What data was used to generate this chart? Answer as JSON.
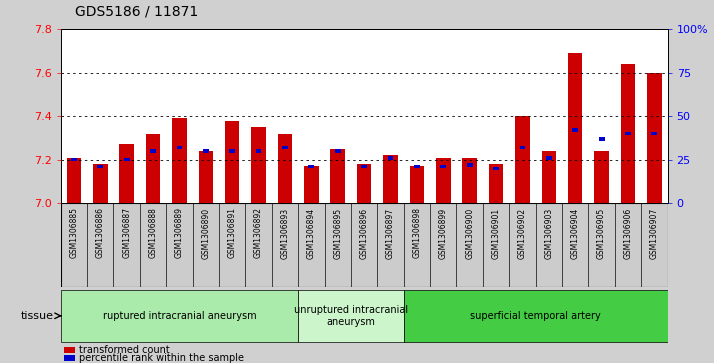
{
  "title": "GDS5186 / 11871",
  "samples": [
    "GSM1306885",
    "GSM1306886",
    "GSM1306887",
    "GSM1306888",
    "GSM1306889",
    "GSM1306890",
    "GSM1306891",
    "GSM1306892",
    "GSM1306893",
    "GSM1306894",
    "GSM1306895",
    "GSM1306896",
    "GSM1306897",
    "GSM1306898",
    "GSM1306899",
    "GSM1306900",
    "GSM1306901",
    "GSM1306902",
    "GSM1306903",
    "GSM1306904",
    "GSM1306905",
    "GSM1306906",
    "GSM1306907"
  ],
  "transformed_count": [
    7.21,
    7.18,
    7.27,
    7.32,
    7.39,
    7.24,
    7.38,
    7.35,
    7.32,
    7.17,
    7.25,
    7.18,
    7.22,
    7.17,
    7.21,
    7.21,
    7.18,
    7.4,
    7.24,
    7.69,
    7.24,
    7.64,
    7.6
  ],
  "percentile_rank": [
    25,
    21,
    25,
    30,
    32,
    30,
    30,
    30,
    32,
    21,
    30,
    21,
    26,
    21,
    21,
    22,
    20,
    32,
    26,
    42,
    37,
    40,
    40
  ],
  "ylim_left": [
    7.0,
    7.8
  ],
  "ylim_right": [
    0,
    100
  ],
  "yticks_left": [
    7.0,
    7.2,
    7.4,
    7.6,
    7.8
  ],
  "yticks_right": [
    0,
    25,
    50,
    75,
    100
  ],
  "ytick_labels_right": [
    "0",
    "25",
    "50",
    "75",
    "100%"
  ],
  "bar_color": "#cc0000",
  "percentile_color": "#0000cc",
  "bar_width": 0.55,
  "groups": [
    {
      "label": "ruptured intracranial aneurysm",
      "start": 0,
      "end": 8,
      "color": "#aaeaaa"
    },
    {
      "label": "unruptured intracranial\naneurysm",
      "start": 9,
      "end": 12,
      "color": "#ccf5cc"
    },
    {
      "label": "superficial temporal artery",
      "start": 13,
      "end": 22,
      "color": "#44cc44"
    }
  ],
  "tissue_label": "tissue",
  "legend_items": [
    {
      "label": "transformed count",
      "color": "#cc0000"
    },
    {
      "label": "percentile rank within the sample",
      "color": "#0000cc"
    }
  ],
  "bg_color": "#d0d0d0",
  "sample_box_color": "#cccccc",
  "plot_bg": "#ffffff",
  "title_fontsize": 10,
  "tick_fontsize": 8,
  "sample_fontsize": 5.5,
  "group_fontsize": 7,
  "legend_fontsize": 7
}
